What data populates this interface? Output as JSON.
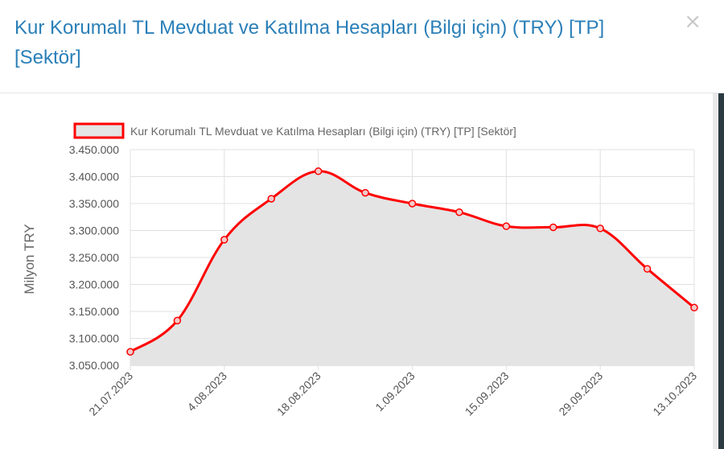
{
  "modal": {
    "title": "Kur Korumalı TL Mevduat ve Katılma Hesapları (Bilgi için) (TRY) [TP] [Sektör]",
    "close_symbol": "×"
  },
  "chart_data": {
    "type": "area",
    "legend": {
      "position": "top",
      "entries": [
        "Kur Korumalı TL Mevduat ve Katılma Hesapları (Bilgi için) (TRY) [TP] [Sektör]"
      ]
    },
    "ylabel": "Milyon TRY",
    "ylim": [
      3050000,
      3450000
    ],
    "yticks": [
      3050000,
      3100000,
      3150000,
      3200000,
      3250000,
      3300000,
      3350000,
      3400000,
      3450000
    ],
    "ytick_labels": [
      "3.050.000",
      "3.100.000",
      "3.150.000",
      "3.200.000",
      "3.250.000",
      "3.300.000",
      "3.350.000",
      "3.400.000",
      "3.450.000"
    ],
    "xtick_labels": [
      "21.07.2023",
      "4.08.2023",
      "18.08.2023",
      "1.09.2023",
      "15.09.2023",
      "29.09.2023",
      "13.10.2023"
    ],
    "x": [
      "21.07.2023",
      "28.07.2023",
      "4.08.2023",
      "11.08.2023",
      "18.08.2023",
      "25.08.2023",
      "1.09.2023",
      "8.09.2023",
      "15.09.2023",
      "22.09.2023",
      "29.09.2023",
      "6.10.2023",
      "13.10.2023"
    ],
    "series": [
      {
        "name": "Kur Korumalı TL Mevduat ve Katılma Hesapları (Bilgi için) (TRY) [TP] [Sektör]",
        "values": [
          3075000,
          3133000,
          3283000,
          3359000,
          3410000,
          3370000,
          3350000,
          3334000,
          3308000,
          3306000,
          3304000,
          3229000,
          3157000
        ]
      }
    ],
    "grid": true,
    "colors": {
      "line": "#ff0000",
      "fill": "#e4e4e4",
      "grid": "#e0e0e0",
      "axis_text": "#666666"
    }
  }
}
